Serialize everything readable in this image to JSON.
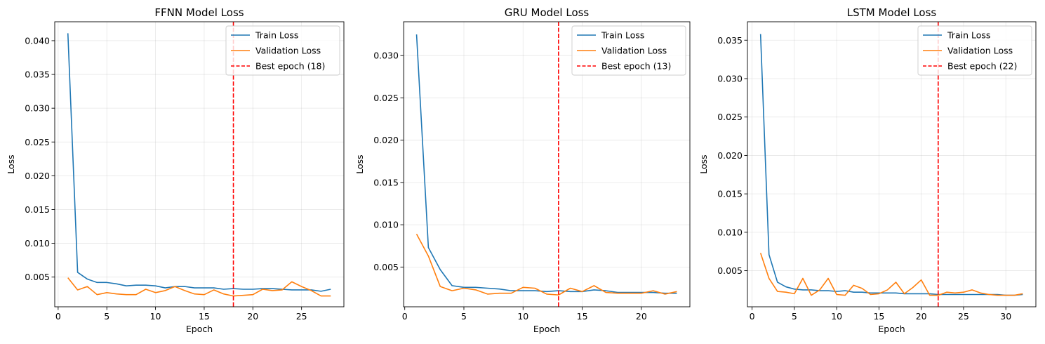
{
  "chart_data": [
    {
      "type": "line",
      "title": "FFNN Model Loss",
      "xlabel": "Epoch",
      "ylabel": "Loss",
      "xlim": [
        -0.35,
        29.35
      ],
      "ylim": [
        0.0006,
        0.0428
      ],
      "xticks": [
        0,
        5,
        10,
        15,
        20,
        25
      ],
      "yticks": [
        0.005,
        0.01,
        0.015,
        0.02,
        0.025,
        0.03,
        0.035,
        0.04
      ],
      "ytick_labels": [
        "0.005",
        "0.010",
        "0.015",
        "0.020",
        "0.025",
        "0.030",
        "0.035",
        "0.040"
      ],
      "grid": true,
      "legend": "upper right",
      "series": [
        {
          "name": "Train Loss",
          "color": "#1f77b4",
          "x": [
            1,
            2,
            3,
            4,
            5,
            6,
            7,
            8,
            9,
            10,
            11,
            12,
            13,
            14,
            15,
            16,
            17,
            18,
            19,
            20,
            21,
            22,
            23,
            24,
            25,
            26,
            27,
            28
          ],
          "values": [
            0.0411,
            0.0057,
            0.0047,
            0.0042,
            0.0042,
            0.004,
            0.0037,
            0.0038,
            0.0038,
            0.0037,
            0.0034,
            0.0036,
            0.0036,
            0.0034,
            0.0034,
            0.0034,
            0.0032,
            0.0033,
            0.0032,
            0.0032,
            0.0033,
            0.0033,
            0.0032,
            0.0031,
            0.0031,
            0.0031,
            0.0029,
            0.0032
          ]
        },
        {
          "name": "Validation Loss",
          "color": "#ff7f0e",
          "x": [
            1,
            2,
            3,
            4,
            5,
            6,
            7,
            8,
            9,
            10,
            11,
            12,
            13,
            14,
            15,
            16,
            17,
            18,
            19,
            20,
            21,
            22,
            23,
            24,
            25,
            26,
            27,
            28
          ],
          "values": [
            0.0049,
            0.0031,
            0.0036,
            0.0024,
            0.0027,
            0.0025,
            0.0024,
            0.0024,
            0.0032,
            0.0027,
            0.003,
            0.0036,
            0.003,
            0.0025,
            0.0024,
            0.0031,
            0.0025,
            0.0022,
            0.0023,
            0.0024,
            0.0032,
            0.003,
            0.0031,
            0.0043,
            0.0036,
            0.003,
            0.0022,
            0.0022
          ]
        }
      ],
      "vline": {
        "x": 18,
        "name": "Best epoch (18)",
        "color": "#ff0000"
      }
    },
    {
      "type": "line",
      "title": "GRU Model Loss",
      "xlabel": "Epoch",
      "ylabel": "Loss",
      "xlim": [
        -0.1,
        24.1
      ],
      "ylim": [
        0.0003,
        0.034
      ],
      "xticks": [
        0,
        5,
        10,
        15,
        20
      ],
      "yticks": [
        0.005,
        0.01,
        0.015,
        0.02,
        0.025,
        0.03
      ],
      "ytick_labels": [
        "0.005",
        "0.010",
        "0.015",
        "0.020",
        "0.025",
        "0.030"
      ],
      "grid": true,
      "legend": "upper right",
      "series": [
        {
          "name": "Train Loss",
          "color": "#1f77b4",
          "x": [
            1,
            2,
            3,
            4,
            5,
            6,
            7,
            8,
            9,
            10,
            11,
            12,
            13,
            14,
            15,
            16,
            17,
            18,
            19,
            20,
            21,
            22,
            23
          ],
          "values": [
            0.0325,
            0.0073,
            0.0047,
            0.0028,
            0.0026,
            0.0026,
            0.0025,
            0.0024,
            0.0022,
            0.0022,
            0.0022,
            0.0021,
            0.0022,
            0.0021,
            0.0021,
            0.0023,
            0.0022,
            0.002,
            0.002,
            0.002,
            0.002,
            0.0019,
            0.0019
          ]
        },
        {
          "name": "Validation Loss",
          "color": "#ff7f0e",
          "x": [
            1,
            2,
            3,
            4,
            5,
            6,
            7,
            8,
            9,
            10,
            11,
            12,
            13,
            14,
            15,
            16,
            17,
            18,
            19,
            20,
            21,
            22,
            23
          ],
          "values": [
            0.0089,
            0.0063,
            0.0027,
            0.0022,
            0.0025,
            0.0023,
            0.0018,
            0.0019,
            0.0019,
            0.0026,
            0.0025,
            0.0018,
            0.0017,
            0.0025,
            0.0021,
            0.0028,
            0.002,
            0.0019,
            0.0019,
            0.0019,
            0.0022,
            0.0018,
            0.0021
          ]
        }
      ],
      "vline": {
        "x": 13,
        "name": "Best epoch (13)",
        "color": "#ff0000"
      }
    },
    {
      "type": "line",
      "title": "LSTM Model Loss",
      "xlabel": "Epoch",
      "ylabel": "Loss",
      "xlim": [
        -0.55,
        33.55
      ],
      "ylim": [
        0.0003,
        0.0374
      ],
      "xticks": [
        0,
        5,
        10,
        15,
        20,
        25,
        30
      ],
      "yticks": [
        0.005,
        0.01,
        0.015,
        0.02,
        0.025,
        0.03,
        0.035
      ],
      "ytick_labels": [
        "0.005",
        "0.010",
        "0.015",
        "0.020",
        "0.025",
        "0.030",
        "0.035"
      ],
      "grid": true,
      "legend": "upper right",
      "series": [
        {
          "name": "Train Loss",
          "color": "#1f77b4",
          "x": [
            1,
            2,
            3,
            4,
            5,
            6,
            7,
            8,
            9,
            10,
            11,
            12,
            13,
            14,
            15,
            16,
            17,
            18,
            19,
            20,
            21,
            22,
            23,
            24,
            25,
            26,
            27,
            28,
            29,
            30,
            31,
            32
          ],
          "values": [
            0.0358,
            0.0071,
            0.0035,
            0.0029,
            0.0026,
            0.0025,
            0.0025,
            0.0024,
            0.0024,
            0.0023,
            0.0024,
            0.0022,
            0.0022,
            0.0021,
            0.0021,
            0.0021,
            0.0021,
            0.002,
            0.002,
            0.002,
            0.002,
            0.0019,
            0.0019,
            0.0019,
            0.0019,
            0.0019,
            0.0019,
            0.0019,
            0.0019,
            0.0018,
            0.0018,
            0.0019
          ]
        },
        {
          "name": "Validation Loss",
          "color": "#ff7f0e",
          "x": [
            1,
            2,
            3,
            4,
            5,
            6,
            7,
            8,
            9,
            10,
            11,
            12,
            13,
            14,
            15,
            16,
            17,
            18,
            19,
            20,
            21,
            22,
            23,
            24,
            25,
            26,
            27,
            28,
            29,
            30,
            31,
            32
          ],
          "values": [
            0.0073,
            0.004,
            0.0023,
            0.0022,
            0.002,
            0.004,
            0.0018,
            0.0025,
            0.004,
            0.0019,
            0.0018,
            0.0031,
            0.0027,
            0.0019,
            0.002,
            0.0025,
            0.0035,
            0.002,
            0.0028,
            0.0038,
            0.0018,
            0.0018,
            0.0022,
            0.0021,
            0.0022,
            0.0025,
            0.0021,
            0.0019,
            0.0018,
            0.0018,
            0.0018,
            0.002
          ]
        }
      ],
      "vline": {
        "x": 22,
        "name": "Best epoch (22)",
        "color": "#ff0000"
      }
    }
  ]
}
